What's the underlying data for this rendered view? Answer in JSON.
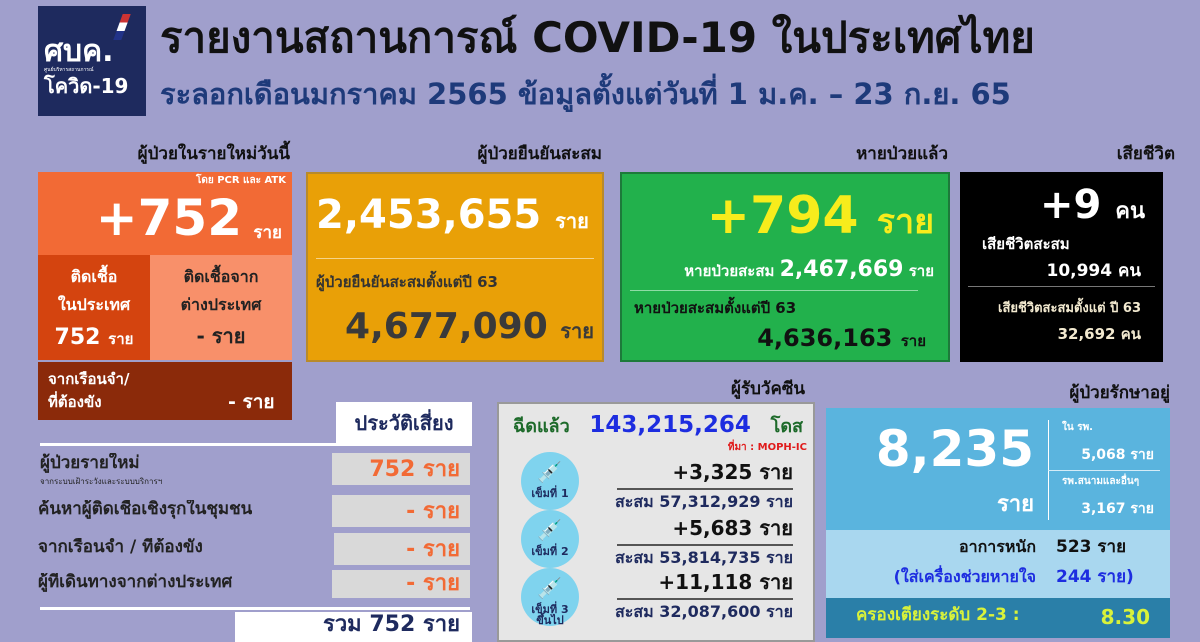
{
  "header": {
    "logo_text": "ศบค.",
    "logo_sub": "ศูนย์บริหารสถานการณ์",
    "logo_covid": "โควิด-19",
    "title": "รายงานสถานการณ์ COVID-19 ในประเทศไทย",
    "subtitle": "ระลอกเดือนมกราคม 2565 ข้อมูลตั้งแต่วันที่ 1 ม.ค. – 23 ก.ย. 65"
  },
  "new_cases": {
    "label": "ผู้ป่วยในรายใหม่วันนี้",
    "method": "โดย  PCR และ ATK",
    "value": "+752",
    "unit": "ราย",
    "domestic_label": "ติดเชื้อ\nในประเทศ",
    "domestic_value": "752",
    "domestic_unit": "ราย",
    "abroad_label": "ติดเชื้อจาก\nต่างประเทศ",
    "abroad_value": "-",
    "abroad_unit": "ราย",
    "prison_label": "จากเรือนจำ/\nที่ต้องขัง",
    "prison_value": "-  ราย"
  },
  "confirmed": {
    "label": "ผู้ป่วยยืนยันสะสม",
    "value": "2,453,655",
    "unit": "ราย",
    "since_label": "ผู้ป่วยยืนยันสะสมตั้งแต่ปี 63",
    "since_value": "4,677,090",
    "since_unit": "ราย"
  },
  "recovered": {
    "label": "หายป่วยแล้ว",
    "value": "+794",
    "unit": "ราย",
    "cum_label": "หายป่วยสะสม",
    "cum_value": "2,467,669",
    "cum_unit": "ราย",
    "since_label": "หายป่วยสะสมตั้งแต่ปี 63",
    "since_value": "4,636,163",
    "since_unit": "ราย"
  },
  "deaths": {
    "label": "เสียชีวิต",
    "value": "+9",
    "unit": "คน",
    "cum_label": "เสียชีวิตสะสม",
    "cum_value": "10,994 คน",
    "since_label": "เสียชีวิตสะสมตั้งแต่ ปี 63",
    "since_value": "32,692 คน"
  },
  "risk": {
    "title": "ประวัติเสี่ยง",
    "rows": [
      {
        "label": "ผู้ป่วยรายใหม่",
        "sublabel": "จากระบบเฝ้าระวังและระบบบริการฯ",
        "value": "752 ราย"
      },
      {
        "label": "ค้นหาผู้ติดเชื้อเชิงรุกในชุมชน",
        "value": "- ราย"
      },
      {
        "label": "จากเรือนจำ / ที่ต้องขัง",
        "value": "- ราย"
      },
      {
        "label": "ผู้ที่เดินทางจากต่างประเทศ",
        "value": "- ราย"
      }
    ],
    "total": "รวม 752 ราย"
  },
  "vaccine": {
    "label": "ผู้รับวัคซีน",
    "given_label": "ฉีดแล้ว",
    "given_value": "143,215,264",
    "given_unit": "โดส",
    "source": "ที่มา : MOPH-IC",
    "doses": [
      {
        "name": "เข็มที่ 1",
        "daily": "+3,325  ราย",
        "cum": "สะสม 57,312,929 ราย"
      },
      {
        "name": "เข็มที่ 2",
        "daily": "+5,683  ราย",
        "cum": "สะสม 53,814,735 ราย"
      },
      {
        "name": "เข็มที่ 3\nขึ้นไป",
        "daily": "+11,118 ราย",
        "cum": "สะสม 32,087,600 ราย"
      }
    ]
  },
  "treatment": {
    "label": "ผู้ป่วยรักษาอยู่",
    "value": "8,235",
    "unit": "ราย",
    "hospital_label": "ใน รพ.",
    "hospital_value": "5,068 ราย",
    "field_label": "รพ.สนามและอื่นๆ",
    "field_value": "3,167 ราย",
    "severe_label": "อาการหนัก",
    "severe_value": "523 ราย",
    "vent_label": "(ใส่เครื่องช่วยหายใจ",
    "vent_value": "244 ราย)",
    "beds_label": "ครองเตียงระดับ 2-3 :",
    "beds_value": "8.30"
  }
}
